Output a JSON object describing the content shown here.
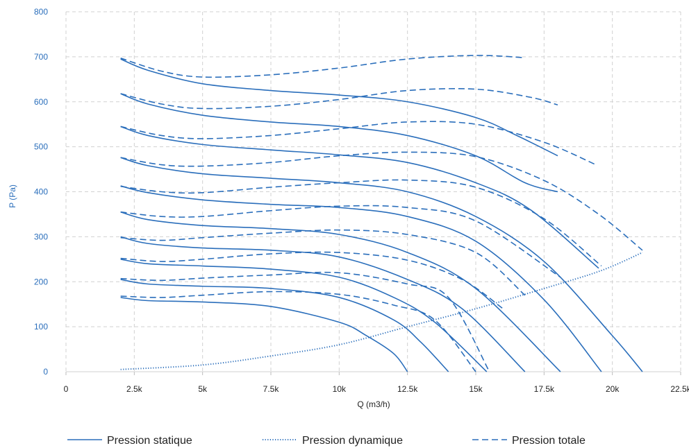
{
  "chart_data": {
    "type": "line",
    "xlabel": "Q (m3/h)",
    "ylabel": "P (Pa)",
    "xlim": [
      0,
      22500
    ],
    "ylim": [
      0,
      800
    ],
    "x_ticks": [
      0,
      2500,
      5000,
      7500,
      10000,
      12500,
      15000,
      17500,
      20000,
      22500
    ],
    "x_tick_labels": [
      "0",
      "2.5k",
      "5k",
      "7.5k",
      "10k",
      "12.5k",
      "15k",
      "17.5k",
      "20k",
      "22.5k"
    ],
    "y_ticks": [
      0,
      100,
      200,
      300,
      400,
      500,
      600,
      700,
      800
    ],
    "y_tick_labels": [
      "0",
      "100",
      "200",
      "300",
      "400",
      "500",
      "600",
      "700",
      "800"
    ],
    "grid": true,
    "legend_position": "bottom",
    "color": "#2a6ebb",
    "legend": [
      {
        "label": "Pression statique",
        "style": "solid"
      },
      {
        "label": "Pression dynamique",
        "style": "dotted"
      },
      {
        "label": "Pression totale",
        "style": "dashed"
      }
    ],
    "series": [
      {
        "group": "statique",
        "style": "solid",
        "x": [
          2000,
          3000,
          5000,
          7500,
          10000,
          11000,
          12000,
          12500
        ],
        "y": [
          165,
          158,
          155,
          145,
          110,
          80,
          40,
          0
        ]
      },
      {
        "group": "statique",
        "style": "solid",
        "x": [
          2000,
          3000,
          5000,
          7500,
          10000,
          12000,
          13000,
          14000
        ],
        "y": [
          205,
          195,
          190,
          185,
          165,
          115,
          65,
          0
        ]
      },
      {
        "group": "statique",
        "style": "solid",
        "x": [
          2000,
          3000,
          5000,
          7500,
          10000,
          12000,
          13500,
          15400
        ],
        "y": [
          250,
          240,
          235,
          228,
          210,
          165,
          110,
          0
        ]
      },
      {
        "group": "statique",
        "style": "solid",
        "x": [
          2000,
          3000,
          5000,
          7500,
          10000,
          12500,
          14500,
          16800
        ],
        "y": [
          300,
          285,
          275,
          270,
          255,
          205,
          140,
          0
        ]
      },
      {
        "group": "statique",
        "style": "solid",
        "x": [
          2000,
          3000,
          5000,
          7500,
          10000,
          12500,
          15000,
          18100
        ],
        "y": [
          355,
          338,
          325,
          318,
          305,
          265,
          185,
          0
        ]
      },
      {
        "group": "statique",
        "style": "solid",
        "x": [
          2000,
          3000,
          5000,
          7500,
          10000,
          12500,
          15000,
          17500,
          19600
        ],
        "y": [
          413,
          398,
          382,
          372,
          365,
          345,
          290,
          160,
          0
        ]
      },
      {
        "group": "statique",
        "style": "solid",
        "x": [
          2000,
          3000,
          5000,
          7500,
          10000,
          12500,
          15000,
          17500,
          20000,
          21100
        ],
        "y": [
          476,
          458,
          440,
          430,
          420,
          400,
          345,
          245,
          80,
          0
        ]
      },
      {
        "group": "statique",
        "style": "solid",
        "x": [
          2000,
          3000,
          5000,
          7500,
          10000,
          12500,
          15000,
          17000,
          19500
        ],
        "y": [
          545,
          525,
          505,
          493,
          482,
          465,
          420,
          360,
          230
        ]
      },
      {
        "group": "statique",
        "style": "solid",
        "x": [
          2000,
          3000,
          5000,
          7500,
          10000,
          12500,
          15000,
          16800,
          18000
        ],
        "y": [
          618,
          595,
          570,
          555,
          545,
          525,
          480,
          420,
          400
        ]
      },
      {
        "group": "statique",
        "style": "solid",
        "x": [
          2000,
          3000,
          5000,
          7500,
          10000,
          12500,
          15000,
          16500,
          18000
        ],
        "y": [
          695,
          670,
          640,
          625,
          615,
          600,
          565,
          525,
          480
        ]
      },
      {
        "group": "dynamique",
        "style": "dotted",
        "x": [
          2000,
          5000,
          7500,
          10000,
          12500,
          15000,
          17500,
          19600,
          21100
        ],
        "y": [
          5,
          15,
          35,
          60,
          100,
          140,
          185,
          225,
          265
        ]
      },
      {
        "group": "totale",
        "style": "dashed",
        "x": [
          2000,
          3500,
          5000,
          7500,
          10000,
          12000,
          13500,
          15000
        ],
        "y": [
          168,
          165,
          170,
          178,
          172,
          148,
          115,
          0
        ]
      },
      {
        "group": "totale",
        "style": "dashed",
        "x": [
          2000,
          3500,
          5000,
          7500,
          10000,
          12500,
          14000,
          15500
        ],
        "y": [
          207,
          203,
          208,
          215,
          220,
          195,
          165,
          0
        ]
      },
      {
        "group": "totale",
        "style": "dashed",
        "x": [
          2000,
          3500,
          5000,
          7500,
          10000,
          12500,
          14500,
          16000
        ],
        "y": [
          252,
          245,
          250,
          262,
          265,
          248,
          205,
          140
        ]
      },
      {
        "group": "totale",
        "style": "dashed",
        "x": [
          2000,
          3500,
          5000,
          7500,
          10000,
          12500,
          15000,
          16800
        ],
        "y": [
          298,
          292,
          298,
          308,
          315,
          305,
          265,
          170
        ]
      },
      {
        "group": "totale",
        "style": "dashed",
        "x": [
          2000,
          3500,
          5000,
          7500,
          10000,
          12500,
          15000,
          18100
        ],
        "y": [
          355,
          345,
          345,
          358,
          368,
          365,
          335,
          210
        ]
      },
      {
        "group": "totale",
        "style": "dashed",
        "x": [
          2000,
          3500,
          5000,
          7500,
          10000,
          12500,
          15000,
          17500,
          19600
        ],
        "y": [
          412,
          400,
          398,
          410,
          420,
          426,
          410,
          340,
          235
        ]
      },
      {
        "group": "totale",
        "style": "dashed",
        "x": [
          2000,
          3500,
          5000,
          7500,
          10000,
          12500,
          15000,
          17500,
          19500,
          21100
        ],
        "y": [
          476,
          460,
          457,
          465,
          480,
          488,
          478,
          425,
          350,
          270
        ]
      },
      {
        "group": "totale",
        "style": "dashed",
        "x": [
          2000,
          3500,
          5000,
          7500,
          10000,
          12500,
          15000,
          17500,
          19400
        ],
        "y": [
          545,
          525,
          518,
          525,
          540,
          555,
          550,
          510,
          460
        ]
      },
      {
        "group": "totale",
        "style": "dashed",
        "x": [
          2000,
          3500,
          5000,
          7500,
          10000,
          12500,
          15000,
          17000,
          18000
        ],
        "y": [
          618,
          595,
          585,
          590,
          605,
          625,
          628,
          610,
          593
        ]
      },
      {
        "group": "totale",
        "style": "dashed",
        "x": [
          2000,
          3500,
          5000,
          7500,
          10000,
          12500,
          15000,
          16800
        ],
        "y": [
          697,
          668,
          655,
          660,
          675,
          695,
          703,
          698
        ]
      }
    ]
  }
}
